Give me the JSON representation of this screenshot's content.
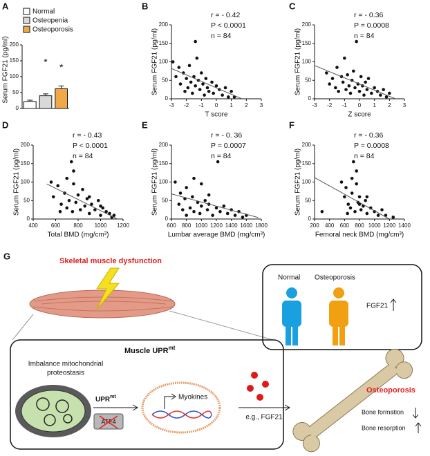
{
  "chart_data": [
    {
      "type": "bar",
      "panel": "A",
      "ylabel": "Serum FGF21 (pg/ml)",
      "categories": [
        "Normal",
        "Osteopenia",
        "Osteoporosis"
      ],
      "values": [
        22,
        40,
        62
      ],
      "errors": [
        4,
        6,
        9
      ],
      "colors": [
        "#ffffff",
        "#d9d9d9",
        "#f0a848"
      ],
      "annotations": [
        "*",
        "*"
      ],
      "ylim": [
        0,
        200
      ],
      "yticks": [
        0,
        50,
        100,
        150,
        200
      ]
    },
    {
      "type": "scatter",
      "panel": "B",
      "ylabel": "Serum FGF21 (pg/ml)",
      "xlabel": "T score",
      "annotations": [
        "r = - 0.42",
        "P < 0.0001",
        "n = 84"
      ],
      "x": [
        -2.9,
        -2.7,
        -2.5,
        -2.4,
        -2.2,
        -2.1,
        -2,
        -1.9,
        -1.8,
        -1.7,
        -1.6,
        -1.5,
        -1.4,
        -1.4,
        -1.3,
        -1.2,
        -1.1,
        -1,
        -0.9,
        -0.8,
        -0.7,
        -0.6,
        -0.5,
        -0.3,
        -0.2,
        0,
        0.2,
        0.4,
        0.6,
        0.8,
        1,
        1.2
      ],
      "y": [
        100,
        60,
        85,
        40,
        70,
        20,
        55,
        30,
        90,
        45,
        15,
        60,
        155,
        35,
        110,
        50,
        25,
        70,
        40,
        10,
        55,
        30,
        20,
        45,
        15,
        35,
        25,
        10,
        30,
        5,
        20,
        5
      ],
      "trendline": {
        "x": [
          -3,
          1.7
        ],
        "y": [
          82,
          0
        ]
      },
      "xlim": [
        -3,
        3
      ],
      "xticks": [
        -3,
        -2,
        -1,
        0,
        1,
        2,
        3
      ],
      "ylim": [
        0,
        200
      ],
      "yticks": [
        0,
        50,
        100,
        150,
        200
      ]
    },
    {
      "type": "scatter",
      "panel": "C",
      "ylabel": "Serum FGF21 (pg/ml)",
      "xlabel": "Z score",
      "annotations": [
        "r = - 0.36",
        "P = 0.0008",
        "n = 84"
      ],
      "x": [
        -2.2,
        -2,
        -1.8,
        -1.6,
        -1.5,
        -1.4,
        -1.2,
        -1.1,
        -1,
        -0.9,
        -0.8,
        -0.7,
        -0.6,
        -0.5,
        -0.4,
        -0.3,
        -0.2,
        -0.1,
        0,
        0.1,
        0.2,
        0.3,
        0.4,
        0.5,
        0.6,
        0.8,
        1,
        1.2,
        1.4,
        1.6,
        1.8,
        2
      ],
      "y": [
        70,
        40,
        55,
        30,
        85,
        20,
        60,
        45,
        110,
        25,
        65,
        35,
        15,
        50,
        75,
        30,
        155,
        40,
        20,
        60,
        35,
        10,
        45,
        25,
        55,
        15,
        30,
        20,
        10,
        25,
        5,
        15
      ],
      "trendline": {
        "x": [
          -3,
          2.4
        ],
        "y": [
          90,
          0
        ]
      },
      "xlim": [
        -3,
        3
      ],
      "xticks": [
        -3,
        -2,
        -1,
        0,
        1,
        2,
        3
      ],
      "ylim": [
        0,
        200
      ],
      "yticks": [
        0,
        50,
        100,
        150,
        200
      ]
    },
    {
      "type": "scatter",
      "panel": "D",
      "ylabel": "Serum FGF21 (pg/ml)",
      "xlabel": "Total BMD (mg/cm³)",
      "annotations": [
        "r = - 0.43",
        "P < 0.0001",
        "n = 84"
      ],
      "x": [
        560,
        580,
        620,
        650,
        680,
        700,
        720,
        740,
        750,
        760,
        780,
        800,
        820,
        840,
        860,
        880,
        900,
        920,
        950,
        980,
        1000,
        1020,
        1050,
        1080,
        1100,
        1120,
        700,
        760,
        640,
        900,
        1000
      ],
      "y": [
        100,
        60,
        90,
        40,
        70,
        30,
        50,
        155,
        20,
        130,
        45,
        65,
        25,
        80,
        35,
        55,
        15,
        40,
        25,
        50,
        10,
        30,
        20,
        15,
        5,
        10,
        110,
        95,
        20,
        60,
        35
      ],
      "trendline": {
        "x": [
          520,
          1150
        ],
        "y": [
          95,
          0
        ]
      },
      "xlim": [
        400,
        1200
      ],
      "xticks": [
        400,
        600,
        800,
        1000,
        1200
      ],
      "ylim": [
        0,
        200
      ],
      "yticks": [
        0,
        50,
        100,
        150,
        200
      ]
    },
    {
      "type": "scatter",
      "panel": "E",
      "ylabel": "Serum FGF21 (pg/ml)",
      "xlabel": "Lumbar average BMD (mg/cm³)",
      "annotations": [
        "r = - 0. 36",
        "P = 0.0007",
        "n = 84"
      ],
      "x": [
        650,
        700,
        720,
        750,
        780,
        800,
        850,
        880,
        900,
        950,
        980,
        1000,
        1050,
        1080,
        1100,
        1150,
        1200,
        1220,
        1250,
        1300,
        1350,
        1400,
        1450,
        1500,
        1550,
        1600,
        900,
        1000,
        1100,
        800
      ],
      "y": [
        100,
        40,
        70,
        25,
        55,
        85,
        30,
        60,
        20,
        45,
        15,
        35,
        50,
        25,
        40,
        10,
        30,
        155,
        20,
        35,
        15,
        25,
        10,
        20,
        5,
        10,
        110,
        95,
        65,
        10
      ],
      "trendline": {
        "x": [
          600,
          1760
        ],
        "y": [
          68,
          4
        ]
      },
      "xlim": [
        600,
        1800
      ],
      "xticks": [
        600,
        800,
        1000,
        1200,
        1400,
        1600,
        1800
      ],
      "ylim": [
        0,
        200
      ],
      "yticks": [
        0,
        50,
        100,
        150,
        200
      ]
    },
    {
      "type": "scatter",
      "panel": "F",
      "ylabel": "Serum FGF21 (pg/ml)",
      "xlabel": "Femoral neck BMD (mg/cm³)",
      "annotations": [
        "r = - 0.36",
        "P = 0.0008",
        "n = 84"
      ],
      "x": [
        300,
        560,
        600,
        620,
        650,
        680,
        700,
        720,
        740,
        760,
        780,
        800,
        820,
        850,
        880,
        900,
        950,
        1000,
        1050,
        1100,
        1150,
        1250,
        700,
        760,
        800,
        640,
        900
      ],
      "y": [
        20,
        100,
        60,
        85,
        40,
        30,
        70,
        155,
        20,
        130,
        45,
        60,
        25,
        35,
        50,
        15,
        30,
        20,
        10,
        25,
        10,
        5,
        110,
        95,
        40,
        15,
        60
      ],
      "trendline": {
        "x": [
          200,
          1200
        ],
        "y": [
          112,
          0
        ]
      },
      "xlim": [
        200,
        1400
      ],
      "xticks": [
        200,
        400,
        600,
        800,
        1000,
        1200,
        1400
      ],
      "ylim": [
        0,
        200
      ],
      "yticks": [
        0,
        50,
        100,
        150,
        200
      ]
    }
  ],
  "diagram": {
    "panel": "G",
    "heading": "Skeletal muscle dysfunction",
    "box_normal": "Normal",
    "box_osteo": "Osteoporosis",
    "box_marker": "FGF21",
    "upr_box": {
      "text": "Muscle UPR",
      "sup": "mt"
    },
    "imbalance": [
      "Imbalance mitochondrial",
      "proteostasis"
    ],
    "upr": {
      "text": "UPR",
      "sup": "mt"
    },
    "atf4": "ATF4",
    "myokines": "Myokines",
    "example": "e.g., FGF21",
    "outcome": "Osteoporosis",
    "formation": "Bone formation",
    "resorption": "Bone resorption"
  }
}
